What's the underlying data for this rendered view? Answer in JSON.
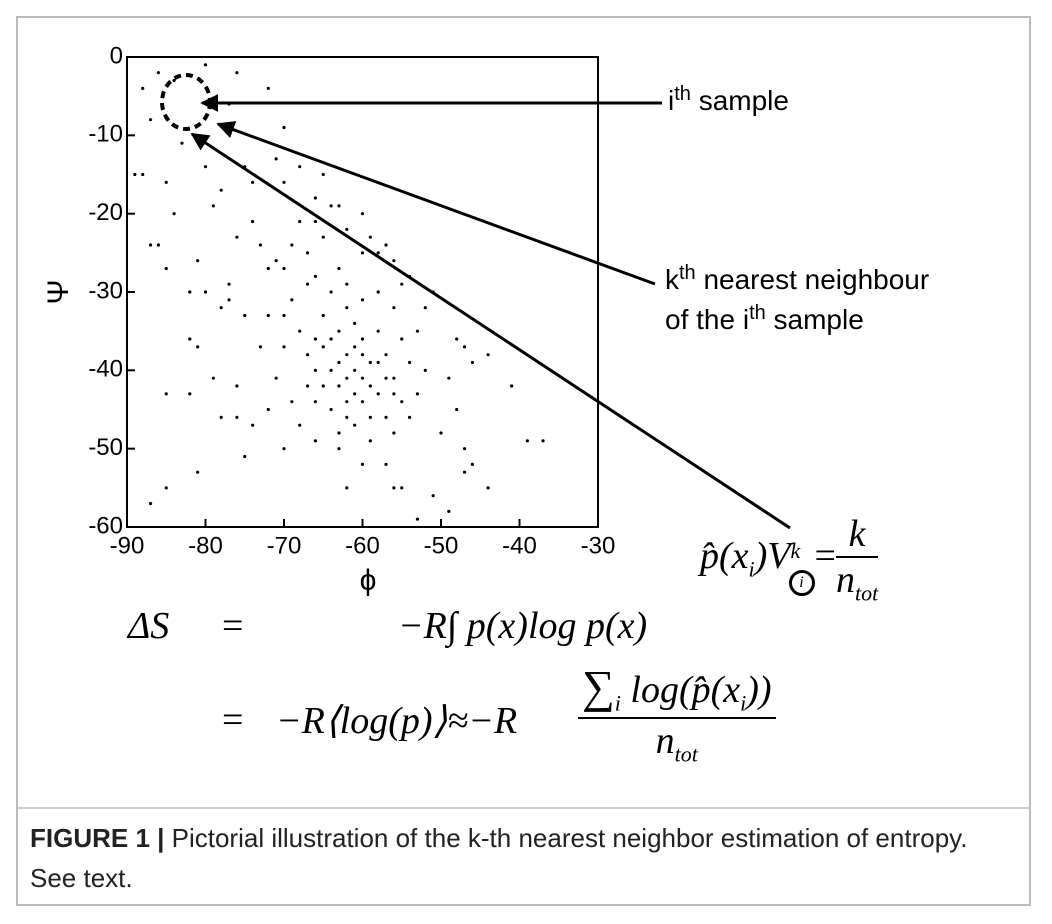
{
  "chart_data": {
    "type": "scatter",
    "color": "#000000",
    "xlabel": "ϕ",
    "ylabel": "Ψ",
    "xlim": [
      -90,
      -30
    ],
    "ylim": [
      -60,
      0
    ],
    "xticks": [
      -90,
      -80,
      -70,
      -60,
      -50,
      -40,
      -30
    ],
    "yticks": [
      0,
      -10,
      -20,
      -30,
      -40,
      -50,
      -60
    ],
    "x": [
      -88,
      -86,
      -84,
      -76,
      -80,
      -87,
      -89,
      -88,
      -85,
      -83,
      -86,
      -87,
      -84,
      -85,
      -77,
      -72,
      -70,
      -80,
      -78,
      -75,
      -74,
      -79,
      -81,
      -82,
      -80,
      -77,
      -78,
      -82,
      -81,
      -79,
      -76,
      -82,
      -85,
      -78,
      -76,
      -74,
      -77,
      -72,
      -75,
      -73,
      -71,
      -74,
      -76,
      -73,
      -71,
      -70,
      -72,
      -68,
      -66,
      -65,
      -66,
      -64,
      -63,
      -65,
      -60,
      -62,
      -59,
      -58,
      -57,
      -60,
      -67,
      -69,
      -71,
      -70,
      -68,
      -67,
      -69,
      -70,
      -68,
      -70,
      -66,
      -63,
      -62,
      -56,
      -55,
      -54,
      -52,
      -51,
      -56,
      -53,
      -48,
      -47,
      -46,
      -44,
      -41,
      -49,
      -48,
      -50,
      -47,
      -46,
      -47,
      -49,
      -53,
      -55,
      -56,
      -57,
      -60,
      -62,
      -63,
      -66,
      -68,
      -66,
      -69,
      -72,
      -70,
      -75,
      -81,
      -85,
      -87,
      -39,
      -37,
      -44,
      -51,
      -61,
      -62,
      -63,
      -60,
      -59,
      -64,
      -58,
      -62,
      -65,
      -60,
      -57,
      -61,
      -63,
      -66,
      -64,
      -59,
      -56,
      -55,
      -58,
      -62,
      -65,
      -60,
      -57,
      -54,
      -67,
      -61,
      -63,
      -59,
      -56,
      -53,
      -52,
      -55,
      -64,
      -58,
      -61,
      -60,
      -62,
      -63,
      -59,
      -61,
      -57,
      -65,
      -64,
      -66,
      -58,
      -60,
      -62,
      -56,
      -54,
      -67
    ],
    "y": [
      -4,
      -2,
      -3,
      -2,
      -1,
      -8,
      -15,
      -15,
      -16,
      -11,
      -24,
      -24,
      -20,
      -27,
      -6,
      -4,
      -9,
      -14,
      -17,
      -14,
      -16,
      -19,
      -26,
      -30,
      -30,
      -29,
      -32,
      -36,
      -37,
      -41,
      -42,
      -43,
      -43,
      -46,
      -46,
      -47,
      -31,
      -33,
      -33,
      -37,
      -41,
      -21,
      -23,
      -24,
      -26,
      -27,
      -27,
      -21,
      -21,
      -23,
      -18,
      -19,
      -19,
      -15,
      -20,
      -22,
      -23,
      -25,
      -24,
      -25,
      -25,
      -24,
      -13,
      -16,
      -14,
      -29,
      -31,
      -33,
      -35,
      -37,
      -28,
      -27,
      -29,
      -26,
      -29,
      -28,
      -32,
      -30,
      -32,
      -35,
      -36,
      -37,
      -39,
      -38,
      -42,
      -41,
      -45,
      -48,
      -50,
      -52,
      -53,
      -58,
      -59,
      -55,
      -55,
      -52,
      -52,
      -55,
      -50,
      -49,
      -47,
      -44,
      -44,
      -45,
      -50,
      -51,
      -53,
      -55,
      -57,
      -49,
      -49,
      -55,
      -56,
      -40,
      -38,
      -42,
      -41,
      -39,
      -40,
      -43,
      -44,
      -37,
      -36,
      -38,
      -34,
      -35,
      -40,
      -45,
      -46,
      -41,
      -44,
      -35,
      -32,
      -33,
      -31,
      -46,
      -39,
      -42,
      -47,
      -48,
      -49,
      -48,
      -43,
      -40,
      -36,
      -30,
      -30,
      -43,
      -44,
      -41,
      -39,
      -42,
      -37,
      -41,
      -42,
      -36,
      -36,
      -39,
      -38,
      -46,
      -43,
      -46,
      -38
    ],
    "annotations": [
      [
        {
          "text": "i"
        },
        {
          "sup": "th"
        },
        {
          "text": " sample"
        }
      ],
      [
        {
          "text": "k"
        },
        {
          "sup": "th"
        },
        {
          "text": " nearest neighbour"
        }
      ],
      [
        {
          "text": "of the i"
        },
        {
          "sup": "th"
        },
        {
          "text": " sample"
        }
      ]
    ]
  },
  "equations": {
    "estimator": {
      "lhs": "p̂(x",
      "lhs_sub": "i",
      "lhs_close": ")V",
      "sup": "k",
      "circled": "i",
      "eq": "=",
      "num": "k",
      "den": "n",
      "den_sub": "tot"
    },
    "entropy": {
      "lhs": "ΔS",
      "eq1": "=",
      "rhs1": "−R∫ p(x)log p(x)",
      "eq2": "=",
      "rhs2": "−R⟨log(p)⟩≈−R",
      "sum": "∑",
      "sum_sub": "i",
      "num": "log(p̂(x",
      "num_sub": "i",
      "num_close": "))",
      "den": "n",
      "den_sub": "tot"
    }
  },
  "caption": {
    "label": "FIGURE 1 |",
    "text": " Pictorial illustration of the k-th nearest neighbor estimation of entropy. See text."
  }
}
